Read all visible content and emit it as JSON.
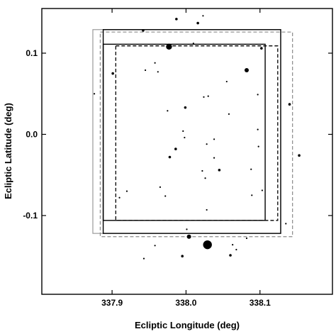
{
  "chart_data": {
    "type": "scatter",
    "title": "",
    "xlabel": "Ecliptic Longitude (deg)",
    "ylabel": "Ecliptic Latitude (deg)",
    "xlim": [
      337.805,
      338.198
    ],
    "ylim": [
      -0.197,
      0.155
    ],
    "x_ticks": [
      337.9,
      338.0,
      338.1
    ],
    "x_tick_labels": [
      "337.9",
      "338.0",
      "338.1"
    ],
    "y_ticks": [
      -0.1,
      0.0,
      0.1
    ],
    "y_tick_labels": [
      "-0.1",
      "0.0",
      "0.1"
    ],
    "grid": false,
    "legend": "none",
    "outlines": [
      {
        "style": "solid-gray",
        "x": [
          337.874,
          338.128
        ],
        "y": [
          -0.122,
          0.129
        ]
      },
      {
        "style": "dashed-gray",
        "x": [
          337.884,
          338.144
        ],
        "y": [
          -0.126,
          0.126
        ]
      },
      {
        "style": "solid-black",
        "x": [
          337.888,
          338.107
        ],
        "y": [
          -0.106,
          0.111
        ]
      },
      {
        "style": "dashed-black",
        "x": [
          337.905,
          338.124
        ],
        "y": [
          -0.106,
          0.109
        ]
      },
      {
        "style": "solid-black",
        "x": [
          337.888,
          338.128
        ],
        "y": [
          -0.122,
          0.129
        ]
      }
    ],
    "stars": [
      {
        "x": 337.942,
        "y": 0.128,
        "m": 2
      },
      {
        "x": 337.977,
        "y": 0.108,
        "m": 4
      },
      {
        "x": 337.987,
        "y": 0.142,
        "m": 2
      },
      {
        "x": 338.016,
        "y": 0.137,
        "m": 2
      },
      {
        "x": 338.023,
        "y": 0.146,
        "m": 1
      },
      {
        "x": 338.01,
        "y": 0.112,
        "m": 1
      },
      {
        "x": 337.901,
        "y": 0.075,
        "m": 2
      },
      {
        "x": 337.958,
        "y": 0.088,
        "m": 1
      },
      {
        "x": 337.945,
        "y": 0.079,
        "m": 1
      },
      {
        "x": 337.962,
        "y": 0.077,
        "m": 1
      },
      {
        "x": 338.082,
        "y": 0.079,
        "m": 3
      },
      {
        "x": 338.102,
        "y": 0.106,
        "m": 2
      },
      {
        "x": 337.876,
        "y": 0.05,
        "m": 1
      },
      {
        "x": 338.055,
        "y": 0.065,
        "m": 1
      },
      {
        "x": 338.024,
        "y": 0.046,
        "m": 1
      },
      {
        "x": 338.03,
        "y": 0.047,
        "m": 1
      },
      {
        "x": 338.097,
        "y": 0.049,
        "m": 1
      },
      {
        "x": 337.999,
        "y": 0.033,
        "m": 2
      },
      {
        "x": 337.975,
        "y": 0.029,
        "m": 1
      },
      {
        "x": 338.058,
        "y": 0.025,
        "m": 1
      },
      {
        "x": 338.14,
        "y": 0.037,
        "m": 2
      },
      {
        "x": 338.097,
        "y": 0.006,
        "m": 1
      },
      {
        "x": 337.996,
        "y": 0.004,
        "m": 1
      },
      {
        "x": 337.998,
        "y": -0.004,
        "m": 1
      },
      {
        "x": 338.038,
        "y": -0.006,
        "m": 1
      },
      {
        "x": 337.986,
        "y": -0.018,
        "m": 2
      },
      {
        "x": 338.028,
        "y": -0.012,
        "m": 1
      },
      {
        "x": 338.098,
        "y": -0.015,
        "m": 1
      },
      {
        "x": 337.978,
        "y": -0.028,
        "m": 2
      },
      {
        "x": 338.153,
        "y": -0.026,
        "m": 2
      },
      {
        "x": 338.038,
        "y": -0.029,
        "m": 1
      },
      {
        "x": 338.022,
        "y": -0.045,
        "m": 1
      },
      {
        "x": 338.045,
        "y": -0.044,
        "m": 2
      },
      {
        "x": 338.088,
        "y": -0.043,
        "m": 1
      },
      {
        "x": 338.026,
        "y": -0.054,
        "m": 1
      },
      {
        "x": 337.965,
        "y": -0.065,
        "m": 1
      },
      {
        "x": 337.92,
        "y": -0.07,
        "m": 1
      },
      {
        "x": 338.103,
        "y": -0.069,
        "m": 1
      },
      {
        "x": 338.089,
        "y": -0.075,
        "m": 1
      },
      {
        "x": 337.91,
        "y": -0.078,
        "m": 1
      },
      {
        "x": 337.972,
        "y": -0.076,
        "m": 1
      },
      {
        "x": 338.028,
        "y": -0.093,
        "m": 1
      },
      {
        "x": 338.001,
        "y": -0.117,
        "m": 1
      },
      {
        "x": 338.004,
        "y": -0.126,
        "m": 3
      },
      {
        "x": 338.029,
        "y": -0.136,
        "m": 5
      },
      {
        "x": 338.063,
        "y": -0.136,
        "m": 1
      },
      {
        "x": 338.068,
        "y": -0.142,
        "m": 1
      },
      {
        "x": 338.06,
        "y": -0.149,
        "m": 2
      },
      {
        "x": 337.995,
        "y": -0.15,
        "m": 2
      },
      {
        "x": 337.943,
        "y": -0.153,
        "m": 1
      },
      {
        "x": 337.958,
        "y": -0.137,
        "m": 1
      },
      {
        "x": 338.082,
        "y": -0.128,
        "m": 1
      },
      {
        "x": 338.135,
        "y": -0.11,
        "m": 1
      }
    ]
  }
}
